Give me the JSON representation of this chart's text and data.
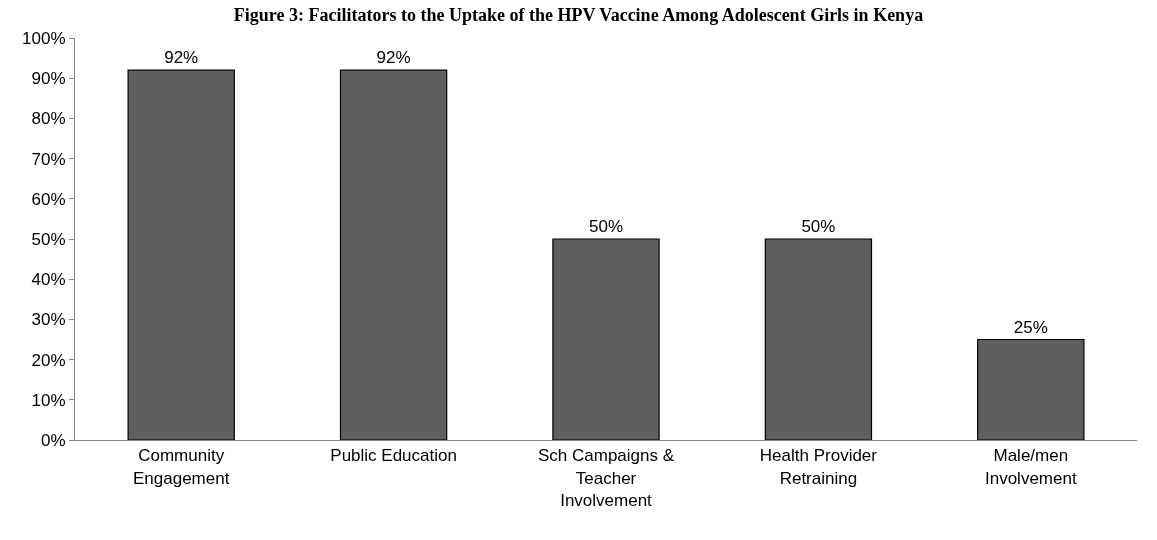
{
  "chart_data": {
    "type": "bar",
    "title": "Figure 3: Facilitators to the Uptake of the HPV Vaccine Among Adolescent Girls in Kenya",
    "categories": [
      "Community Engagement",
      "Public Education",
      "Sch Campaigns & Teacher Involvement",
      "Health Provider Retraining",
      "Male/men Involvement"
    ],
    "values": [
      92,
      92,
      50,
      50,
      25
    ],
    "color": "#5f5f5f",
    "data_labels": true,
    "value_labels": [
      "92%",
      "92%",
      "50%",
      "50%",
      "25%"
    ],
    "ylim": [
      0,
      100
    ],
    "yticks": [
      {
        "value": 0,
        "label": "0%"
      },
      {
        "value": 10,
        "label": "10%"
      },
      {
        "value": 20,
        "label": "20%"
      },
      {
        "value": 30,
        "label": "30%"
      },
      {
        "value": 40,
        "label": "40%"
      },
      {
        "value": 50,
        "label": "50%"
      },
      {
        "value": 60,
        "label": "60%"
      },
      {
        "value": 70,
        "label": "70%"
      },
      {
        "value": 80,
        "label": "80%"
      },
      {
        "value": 90,
        "label": "90%"
      },
      {
        "value": 100,
        "label": "100%"
      }
    ]
  }
}
